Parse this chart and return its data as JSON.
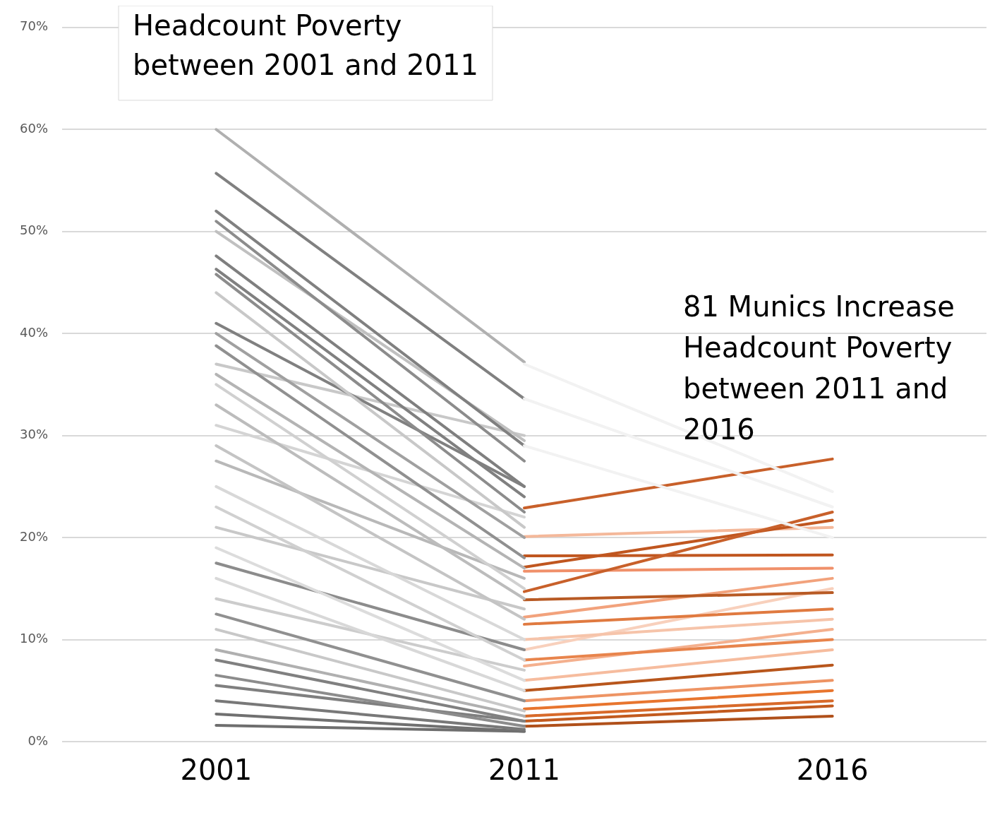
{
  "chart_data": {
    "type": "line",
    "categories": [
      "2001",
      "2011",
      "2016"
    ],
    "ylim": [
      0,
      70
    ],
    "yticks": [
      {
        "value": 0,
        "label": "0%"
      },
      {
        "value": 10,
        "label": "10%"
      },
      {
        "value": 20,
        "label": "20%"
      },
      {
        "value": 30,
        "label": "30%"
      },
      {
        "value": 40,
        "label": "40%"
      },
      {
        "value": 50,
        "label": "50%"
      },
      {
        "value": 60,
        "label": "60%"
      },
      {
        "value": 70,
        "label": "70%"
      }
    ],
    "grid": "y",
    "legend": false,
    "marker": "none",
    "line_style": "solid",
    "annotations": [
      "Headcount Poverty between 2001 and 2011",
      "81 Munics Increase Headcount Poverty between 2011 and 2016"
    ],
    "series": [
      {
        "color": "#f2f2f2",
        "values": [
          null,
          37,
          24.5
        ]
      },
      {
        "color": "#f2f2f2",
        "values": [
          null,
          33.6,
          23
        ]
      },
      {
        "color": "#f2f2f2",
        "values": [
          null,
          29,
          20
        ]
      },
      {
        "color": "#b0b0b0",
        "values": [
          60,
          37.2,
          null
        ]
      },
      {
        "color": "#808080",
        "values": [
          55.7,
          33.6,
          null
        ]
      },
      {
        "color": "#808080",
        "values": [
          52,
          29,
          null
        ]
      },
      {
        "color": "#8c8c8c",
        "values": [
          51,
          27.5,
          null
        ]
      },
      {
        "color": "#c0c0c0",
        "values": [
          50,
          29.5,
          null
        ]
      },
      {
        "color": "#7f7f7f",
        "values": [
          47.6,
          25,
          null
        ]
      },
      {
        "color": "#808080",
        "values": [
          46.3,
          24,
          null
        ]
      },
      {
        "color": "#8c8c8c",
        "values": [
          45.8,
          22.5,
          null
        ]
      },
      {
        "color": "#c8c8c8",
        "values": [
          44,
          21,
          null
        ]
      },
      {
        "color": "#808080",
        "values": [
          41,
          25,
          null
        ]
      },
      {
        "color": "#a0a0a0",
        "values": [
          40,
          20,
          null
        ]
      },
      {
        "color": "#909090",
        "values": [
          38.8,
          18,
          null
        ]
      },
      {
        "color": "#c8c8c8",
        "values": [
          37,
          30,
          null
        ]
      },
      {
        "color": "#b4b4b4",
        "values": [
          36,
          17,
          null
        ]
      },
      {
        "color": "#d0d0d0",
        "values": [
          35,
          15,
          null
        ]
      },
      {
        "color": "#bcbcbc",
        "values": [
          33,
          14,
          null
        ]
      },
      {
        "color": "#d4d4d4",
        "values": [
          31,
          22,
          null
        ]
      },
      {
        "color": "#c4c4c4",
        "values": [
          29,
          12,
          null
        ]
      },
      {
        "color": "#b8b8b8",
        "values": [
          27.5,
          16,
          null
        ]
      },
      {
        "color": "#d8d8d8",
        "values": [
          25,
          10,
          null
        ]
      },
      {
        "color": "#d0d0d0",
        "values": [
          23,
          8,
          null
        ]
      },
      {
        "color": "#c8c8c8",
        "values": [
          21,
          13,
          null
        ]
      },
      {
        "color": "#dcdcdc",
        "values": [
          19,
          6,
          null
        ]
      },
      {
        "color": "#8c8c8c",
        "values": [
          17.5,
          9,
          null
        ]
      },
      {
        "color": "#d8d8d8",
        "values": [
          16,
          5,
          null
        ]
      },
      {
        "color": "#cccccc",
        "values": [
          14,
          7,
          null
        ]
      },
      {
        "color": "#909090",
        "values": [
          12.5,
          4,
          null
        ]
      },
      {
        "color": "#c8c8c8",
        "values": [
          11,
          3,
          null
        ]
      },
      {
        "color": "#b0b0b0",
        "values": [
          9,
          2.5,
          null
        ]
      },
      {
        "color": "#808080",
        "values": [
          8,
          2,
          null
        ]
      },
      {
        "color": "#8c8c8c",
        "values": [
          6.5,
          1.5,
          null
        ]
      },
      {
        "color": "#7f7f7f",
        "values": [
          5.5,
          2,
          null
        ]
      },
      {
        "color": "#787878",
        "values": [
          4,
          1.2,
          null
        ]
      },
      {
        "color": "#707070",
        "values": [
          2.7,
          1,
          null
        ]
      },
      {
        "color": "#6e6e6e",
        "values": [
          1.6,
          1,
          null
        ]
      },
      {
        "color": "#c8602a",
        "values": [
          null,
          22.9,
          27.7
        ]
      },
      {
        "color": "#c8602a",
        "values": [
          null,
          14.7,
          22.5
        ]
      },
      {
        "color": "#c0561f",
        "values": [
          null,
          17.1,
          21.7
        ]
      },
      {
        "color": "#f4b89a",
        "values": [
          null,
          20.1,
          21
        ]
      },
      {
        "color": "#c0561f",
        "values": [
          null,
          18.2,
          18.3
        ]
      },
      {
        "color": "#f0906a",
        "values": [
          null,
          16.7,
          17
        ]
      },
      {
        "color": "#b85a24",
        "values": [
          null,
          13.9,
          14.6
        ]
      },
      {
        "color": "#f2a27c",
        "values": [
          null,
          12.2,
          16
        ]
      },
      {
        "color": "#e07a40",
        "values": [
          null,
          11.5,
          13
        ]
      },
      {
        "color": "#f6c4aa",
        "values": [
          null,
          10,
          12
        ]
      },
      {
        "color": "#f8d0bc",
        "values": [
          null,
          9,
          15
        ]
      },
      {
        "color": "#e8844c",
        "values": [
          null,
          8,
          10
        ]
      },
      {
        "color": "#f4b08e",
        "values": [
          null,
          7.4,
          11
        ]
      },
      {
        "color": "#f6bc9e",
        "values": [
          null,
          6,
          9
        ]
      },
      {
        "color": "#b8561c",
        "values": [
          null,
          5,
          7.5
        ]
      },
      {
        "color": "#ee9464",
        "values": [
          null,
          4,
          6
        ]
      },
      {
        "color": "#e8752e",
        "values": [
          null,
          3.2,
          5
        ]
      },
      {
        "color": "#d86a2a",
        "values": [
          null,
          2.5,
          4
        ]
      },
      {
        "color": "#c25a1e",
        "values": [
          null,
          2,
          3.5
        ]
      },
      {
        "color": "#b0501a",
        "values": [
          null,
          1.5,
          2.5
        ]
      }
    ]
  }
}
